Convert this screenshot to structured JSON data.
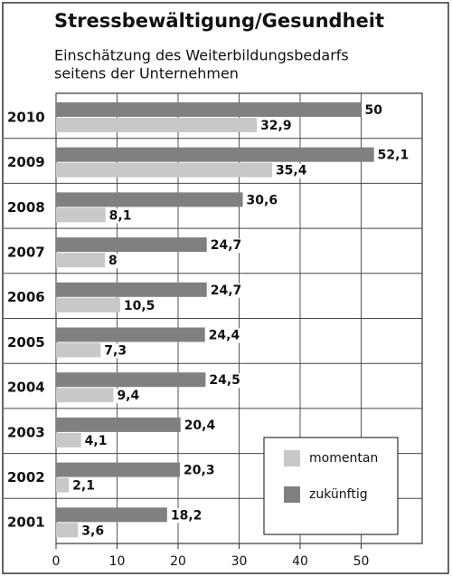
{
  "chart_data": {
    "type": "bar",
    "orientation": "horizontal",
    "title": "Stressbewältigung/Gesundheit",
    "subtitle": [
      "Einschätzung des Weiterbildungsbedarfs",
      "seitens der Unternehmen"
    ],
    "categories": [
      "2010",
      "2009",
      "2008",
      "2007",
      "2006",
      "2005",
      "2004",
      "2003",
      "2002",
      "2001"
    ],
    "series": [
      {
        "name": "momentan",
        "color": "#c8c8c8",
        "values": [
          32.9,
          35.4,
          8.1,
          8,
          10.5,
          7.3,
          9.4,
          4.1,
          2.1,
          3.6
        ],
        "value_labels": [
          "32,9",
          "35,4",
          "8,1",
          "8",
          "10,5",
          "7,3",
          "9,4",
          "4,1",
          "2,1",
          "3,6"
        ]
      },
      {
        "name": "zukünftig",
        "color": "#808080",
        "values": [
          50,
          52.1,
          30.6,
          24.7,
          24.7,
          24.4,
          24.5,
          20.4,
          20.3,
          18.2
        ],
        "value_labels": [
          "50",
          "52,1",
          "30,6",
          "24,7",
          "24,7",
          "24,4",
          "24,5",
          "20,4",
          "20,3",
          "18,2"
        ]
      }
    ],
    "xlim": [
      0,
      60
    ],
    "xticks": [
      0,
      10,
      20,
      30,
      40,
      50
    ],
    "grid": true
  }
}
